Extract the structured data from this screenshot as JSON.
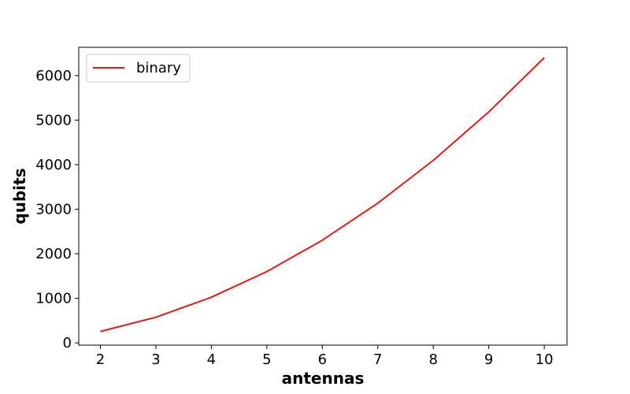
{
  "chart_data": {
    "type": "line",
    "title": "",
    "xlabel": "antennas",
    "ylabel": "qubits",
    "x": [
      2,
      3,
      4,
      5,
      6,
      7,
      8,
      9,
      10
    ],
    "series": [
      {
        "name": "binary",
        "color": "#e31a1c",
        "values": [
          256,
          576,
          1024,
          1600,
          2304,
          3136,
          4096,
          5184,
          6400
        ]
      }
    ],
    "xticks": [
      "2",
      "3",
      "4",
      "5",
      "6",
      "7",
      "8",
      "9",
      "10"
    ],
    "yticks": [
      "0",
      "1000",
      "2000",
      "3000",
      "4000",
      "5000",
      "6000"
    ],
    "xlim": [
      1.61,
      10.41
    ],
    "ylim": [
      -51,
      6634
    ],
    "grid": false,
    "legend_position": "top-left"
  }
}
